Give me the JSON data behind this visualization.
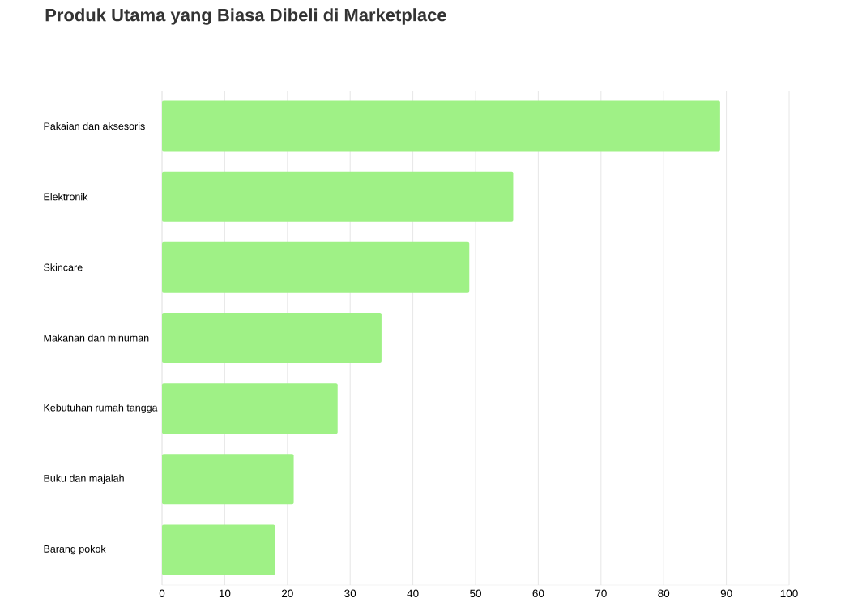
{
  "chart_data": {
    "type": "bar",
    "orientation": "horizontal",
    "title": "Produk Utama yang Biasa Dibeli di Marketplace",
    "categories": [
      "Pakaian dan aksesoris",
      "Elektronik",
      "Skincare",
      "Makanan dan minuman",
      "Kebutuhan rumah tangga",
      "Buku dan majalah",
      "Barang pokok"
    ],
    "values": [
      89,
      56,
      49,
      35,
      28,
      21,
      18
    ],
    "color": "#9ff186",
    "xlim": [
      0,
      100
    ],
    "xticks": [
      0,
      10,
      20,
      30,
      40,
      50,
      60,
      70,
      80,
      90,
      100
    ],
    "grid": "x"
  }
}
